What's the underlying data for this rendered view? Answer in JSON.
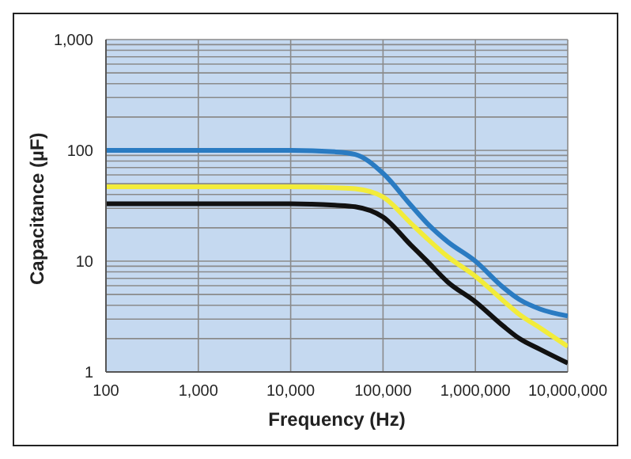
{
  "chart_data": {
    "type": "line",
    "xlabel": "Frequency (Hz)",
    "ylabel": "Capacitance (µF)",
    "log": "xy",
    "grid": true,
    "marker": "none",
    "line_style": "solid",
    "xlim": [
      100,
      10000000
    ],
    "xticks": [
      {
        "value": 100,
        "label": "100"
      },
      {
        "value": 1000,
        "label": "1,000"
      },
      {
        "value": 10000,
        "label": "10,000"
      },
      {
        "value": 100000,
        "label": "100,000"
      },
      {
        "value": 1000000,
        "label": "1,000,000"
      },
      {
        "value": 10000000,
        "label": "10,000,000"
      }
    ],
    "ylim": [
      1,
      1000
    ],
    "yticks": [
      {
        "value": 1,
        "label": "1"
      },
      {
        "value": 2,
        "label": null
      },
      {
        "value": 3,
        "label": null
      },
      {
        "value": 4,
        "label": null
      },
      {
        "value": 5,
        "label": null
      },
      {
        "value": 6,
        "label": null
      },
      {
        "value": 7,
        "label": null
      },
      {
        "value": 8,
        "label": null
      },
      {
        "value": 9,
        "label": null
      },
      {
        "value": 10,
        "label": "10"
      },
      {
        "value": 20,
        "label": null
      },
      {
        "value": 30,
        "label": null
      },
      {
        "value": 40,
        "label": null
      },
      {
        "value": 50,
        "label": null
      },
      {
        "value": 60,
        "label": null
      },
      {
        "value": 70,
        "label": null
      },
      {
        "value": 80,
        "label": null
      },
      {
        "value": 90,
        "label": null
      },
      {
        "value": 100,
        "label": "100"
      },
      {
        "value": 200,
        "label": null
      },
      {
        "value": 300,
        "label": null
      },
      {
        "value": 400,
        "label": null
      },
      {
        "value": 500,
        "label": null
      },
      {
        "value": 600,
        "label": null
      },
      {
        "value": 700,
        "label": null
      },
      {
        "value": 800,
        "label": null
      },
      {
        "value": 900,
        "label": null
      },
      {
        "value": 1000,
        "label": "1,000"
      }
    ],
    "x": [
      100,
      1000,
      10000,
      30000,
      50000,
      100000,
      200000,
      300000,
      500000,
      1000000,
      2000000,
      3000000,
      5000000,
      10000000
    ],
    "series": [
      {
        "color": "#111111",
        "values": [
          33,
          33,
          33,
          32,
          31,
          25,
          14,
          10,
          6.5,
          4.3,
          2.6,
          2.0,
          1.6,
          1.2
        ]
      },
      {
        "color": "#f2ec3a",
        "values": [
          47,
          47,
          47,
          46,
          45,
          38,
          22,
          16,
          11,
          7.3,
          4.4,
          3.3,
          2.5,
          1.7
        ]
      },
      {
        "color": "#2a7bc2",
        "values": [
          100,
          100,
          100,
          97,
          92,
          62,
          32,
          22,
          15,
          10,
          5.8,
          4.5,
          3.7,
          3.2
        ]
      }
    ]
  }
}
